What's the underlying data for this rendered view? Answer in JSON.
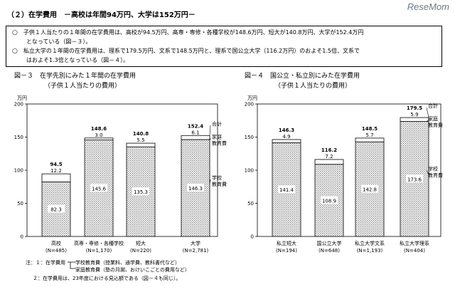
{
  "header": {
    "title": "（２）在学費用　－高校は年間94万円、大学は152万円－",
    "logo": "ReseMom"
  },
  "summary": [
    {
      "bullet": "○",
      "lines": [
        "子供１人当たりの１年間の在学費用は、高校が94.5万円、高専・専修・各種学校が148.6万円、短大が140.8万円、大学が152.4万円",
        "となっている（図－３）。"
      ]
    },
    {
      "bullet": "○",
      "lines": [
        "私立大学の１年間の在学費用は、理系で179.5万円、文系で148.5万円と、理系で国公立大学（116.2万円）のおよそ1.5倍、文系で",
        "はおよそ1.3倍となっている（図－４）。"
      ]
    }
  ],
  "chart_data": [
    {
      "type": "bar",
      "title": "図－３　在学先別にみた１年間の在学費用",
      "subtitle": "（子供１人当たりの費用）",
      "ylabel": "万円",
      "ylim": [
        0,
        200
      ],
      "yticks": [
        "0",
        "50",
        "100",
        "150",
        "200"
      ],
      "categories": [
        "高校",
        "高専・専修・各種学校",
        "短大",
        "大学"
      ],
      "counts": [
        "(N=485)",
        "(N=1,170)",
        "(N=220)",
        "(N=2,781)"
      ],
      "series": [
        {
          "name": "学校教育費",
          "values": [
            82.3,
            145.6,
            135.3,
            146.3
          ],
          "labels": [
            "82.3",
            "145.6",
            "135.3",
            "146.3"
          ]
        },
        {
          "name": "家庭教育費",
          "values": [
            12.2,
            3.0,
            5.5,
            6.1
          ],
          "labels": [
            "12.2",
            "3.0",
            "5.5",
            "6.1"
          ]
        }
      ],
      "totals": [
        94.5,
        148.6,
        140.8,
        152.4
      ],
      "total_labels": [
        "94.5",
        "148.6",
        "140.8",
        "152.4"
      ],
      "legend_labels": [
        "合計",
        "家庭",
        "教育費",
        "学校",
        "教育費"
      ]
    },
    {
      "type": "bar",
      "title": "図－４　国公立・私立別にみた在学費用",
      "subtitle": "（子供１人当たりの費用）",
      "ylabel": "万円",
      "ylim": [
        0,
        200
      ],
      "yticks": [
        "0",
        "50",
        "100",
        "150",
        "200"
      ],
      "categories": [
        "私立短大",
        "国公立大学",
        "私立大学文系",
        "私立大学理系"
      ],
      "counts": [
        "(N=194)",
        "(N=648)",
        "(N=1,193)",
        "(N=404)"
      ],
      "series": [
        {
          "name": "学校教育費",
          "values": [
            141.4,
            108.9,
            142.8,
            173.6
          ],
          "labels": [
            "141.4",
            "108.9",
            "142.8",
            "173.6"
          ]
        },
        {
          "name": "家庭教育費",
          "values": [
            4.9,
            7.2,
            5.7,
            5.9
          ],
          "labels": [
            "4.9",
            "7.2",
            "5.7",
            "5.9"
          ]
        }
      ],
      "totals": [
        146.3,
        116.2,
        148.5,
        179.5
      ],
      "total_labels": [
        "146.3",
        "116.2",
        "148.5",
        "179.5"
      ],
      "legend_labels": [
        "合計",
        "家庭",
        "教育費",
        "学校",
        "教育費"
      ]
    }
  ],
  "notes": {
    "line1_prefix": "注：１：在学費用",
    "school_item": "学校教育費（授業料、通学費、教科書代など）",
    "home_item": "家庭教育費（塾の月謝、おけいこごとの費用など）",
    "line2": "２：在学費用は、23年度における見込額である（図－４も同じ）。"
  },
  "colors": {
    "stipple": "#8a8a8a",
    "line": "#000000",
    "paper": "#ffffff"
  }
}
